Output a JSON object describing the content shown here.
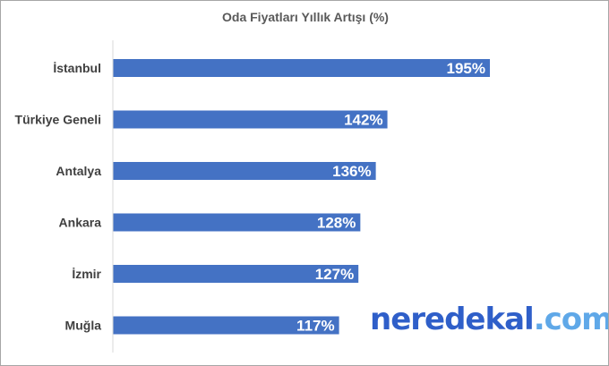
{
  "chart_data": {
    "type": "bar",
    "orientation": "horizontal",
    "title": "Oda Fiyatları Yıllık Artışı (%)",
    "categories": [
      "İstanbul",
      "Türkiye Geneli",
      "Antalya",
      "Ankara",
      "İzmir",
      "Muğla"
    ],
    "values": [
      195,
      142,
      136,
      128,
      127,
      117
    ],
    "value_labels": [
      "195%",
      "142%",
      "136%",
      "128%",
      "127%",
      "117%"
    ],
    "xlim": [
      0,
      200
    ],
    "grid": false,
    "legend": "none",
    "bar_color": "#4472c4"
  },
  "watermark": {
    "part1": "neredekal",
    "part2": ".com",
    "color1": "#2f5fc9",
    "color2": "#5fa8e8"
  }
}
